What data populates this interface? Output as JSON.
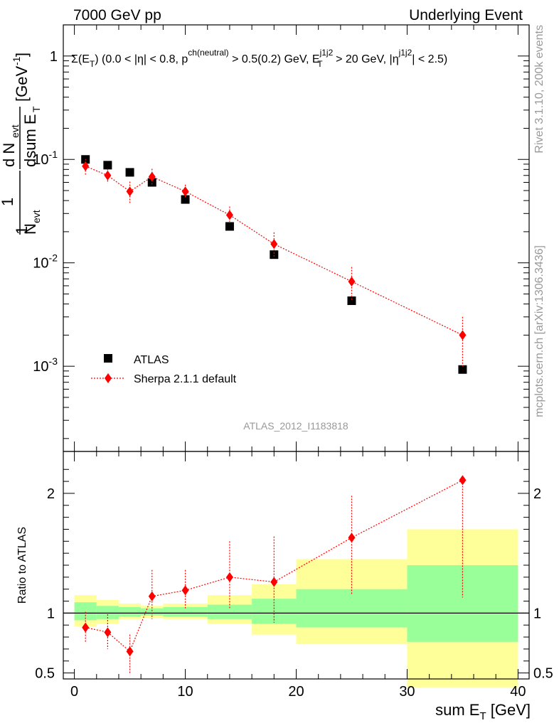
{
  "header": {
    "left": "7000 GeV pp",
    "right": "Underlying Event"
  },
  "side": {
    "rivet": "Rivet 3.1.10,  200k events",
    "mcplots": "mcplots.cern.ch [arXiv:1306.3436]"
  },
  "watermark": "ATLAS_2012_I1183818",
  "chart_data": [
    {
      "type": "scatter",
      "title": "Σ(E_T) (0.0 < |η| < 0.8, p^ch(neutral) > 0.5(0.2) GeV, E_T^j1j2 > 20 GeV, |η^j1j2| < 2.5)",
      "ylabel": "1/N_evt dN_evt/dsum E_T [GeV^-1]",
      "yscale": "log",
      "ylim": [
        0.00015,
        2.0
      ],
      "xlim": [
        -1,
        41
      ],
      "ytick_labels": [
        "10^-3",
        "10^-2",
        "10^-1",
        "1"
      ],
      "legend_position": "lower-left",
      "series": [
        {
          "name": "ATLAS",
          "color": "#000000",
          "marker": "square",
          "x": [
            1,
            3,
            5,
            7,
            10,
            14,
            18,
            25,
            35
          ],
          "y": [
            0.1,
            0.088,
            0.075,
            0.06,
            0.041,
            0.0225,
            0.012,
            0.0043,
            0.00093
          ]
        },
        {
          "name": "Sherpa 2.1.1 default",
          "color": "#ff0000",
          "marker": "diamond",
          "line": "dotted",
          "x": [
            1,
            3,
            5,
            7,
            10,
            14,
            18,
            25,
            35
          ],
          "y": [
            0.086,
            0.07,
            0.049,
            0.068,
            0.049,
            0.029,
            0.0152,
            0.0066,
            0.002
          ],
          "err_low": [
            0.015,
            0.011,
            0.011,
            0.012,
            0.006,
            0.004,
            0.004,
            0.0022,
            0.001
          ],
          "err_high": [
            0.015,
            0.011,
            0.012,
            0.013,
            0.008,
            0.006,
            0.0045,
            0.0025,
            0.001
          ]
        }
      ]
    },
    {
      "type": "scatter",
      "ylabel": "Ratio to ATLAS",
      "xlabel": "sum E_T [GeV]",
      "ylim": [
        0.45,
        2.35
      ],
      "xlim": [
        -1,
        41
      ],
      "yticks": [
        0.5,
        1,
        2
      ],
      "xticks": [
        0,
        10,
        20,
        30,
        40
      ],
      "reference_line": 1,
      "bands": {
        "edges": [
          0,
          2,
          4,
          6,
          8,
          12,
          16,
          20,
          30,
          40
        ],
        "yellow_low": [
          0.89,
          0.91,
          0.95,
          0.96,
          0.95,
          0.91,
          0.82,
          0.74,
          0.38
        ],
        "yellow_high": [
          1.15,
          1.11,
          1.08,
          1.06,
          1.08,
          1.15,
          1.24,
          1.45,
          1.7
        ],
        "green_low": [
          0.94,
          0.95,
          0.97,
          0.98,
          0.97,
          0.95,
          0.91,
          0.88,
          0.76
        ],
        "green_high": [
          1.09,
          1.06,
          1.05,
          1.04,
          1.05,
          1.07,
          1.12,
          1.2,
          1.4
        ]
      },
      "series": [
        {
          "name": "Sherpa 2.1.1 default",
          "color": "#ff0000",
          "x": [
            1,
            3,
            5,
            7,
            10,
            14,
            18,
            25,
            35
          ],
          "y": [
            0.88,
            0.84,
            0.68,
            1.14,
            1.19,
            1.3,
            1.26,
            1.63,
            2.11
          ],
          "err_low": [
            0.13,
            0.14,
            0.18,
            0.19,
            0.15,
            0.26,
            0.34,
            0.48,
            0.98
          ],
          "err_high": [
            0.13,
            0.15,
            0.14,
            0.22,
            0.17,
            0.3,
            0.38,
            0.35,
            0.0
          ]
        }
      ]
    }
  ]
}
